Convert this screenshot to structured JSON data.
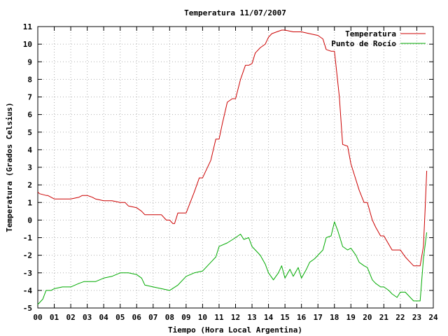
{
  "chart_data": {
    "type": "line",
    "title": "Temperatura 11/07/2007",
    "xlabel": "Tiempo (Hora Local Argentina)",
    "ylabel": "Temperatura (Grados Celsius)",
    "xlim": [
      0,
      24
    ],
    "ylim": [
      -5,
      11
    ],
    "xticks": [
      0,
      1,
      2,
      3,
      4,
      5,
      6,
      7,
      8,
      9,
      10,
      11,
      12,
      13,
      14,
      15,
      16,
      17,
      18,
      19,
      20,
      21,
      22,
      23,
      24
    ],
    "xtick_labels": [
      "00",
      "01",
      "02",
      "03",
      "04",
      "05",
      "06",
      "07",
      "08",
      "09",
      "10",
      "11",
      "12",
      "13",
      "14",
      "15",
      "16",
      "17",
      "18",
      "19",
      "20",
      "21",
      "22",
      "23",
      "24"
    ],
    "yticks": [
      -5,
      -4,
      -3,
      -2,
      -1,
      0,
      1,
      2,
      3,
      4,
      5,
      6,
      7,
      8,
      9,
      10,
      11
    ],
    "grid": true,
    "legend_position": "top-right",
    "series": [
      {
        "name": "Temperatura",
        "color": "#cc0000",
        "x": [
          0.0,
          0.1,
          0.5,
          0.6,
          1.0,
          1.5,
          2.0,
          2.5,
          2.7,
          3.0,
          3.3,
          3.5,
          4.0,
          4.5,
          5.0,
          5.3,
          5.5,
          6.0,
          6.3,
          6.5,
          7.0,
          7.5,
          7.8,
          8.0,
          8.2,
          8.3,
          8.5,
          8.8,
          9.0,
          9.5,
          9.8,
          10.0,
          10.5,
          10.8,
          11.0,
          11.2,
          11.5,
          11.8,
          12.0,
          12.3,
          12.6,
          12.8,
          13.0,
          13.2,
          13.5,
          13.8,
          14.0,
          14.2,
          14.5,
          14.8,
          15.0,
          15.5,
          16.0,
          16.5,
          17.0,
          17.3,
          17.5,
          17.8,
          18.0,
          18.3,
          18.5,
          18.8,
          19.0,
          19.5,
          19.8,
          20.0,
          20.3,
          20.5,
          20.8,
          21.0,
          21.5,
          21.8,
          22.0,
          22.3,
          22.5,
          22.8,
          23.0,
          23.2,
          23.4,
          23.5,
          23.6
        ],
        "values": [
          1.6,
          1.5,
          1.4,
          1.4,
          1.2,
          1.2,
          1.2,
          1.3,
          1.4,
          1.4,
          1.3,
          1.2,
          1.1,
          1.1,
          1.0,
          1.0,
          0.8,
          0.7,
          0.5,
          0.3,
          0.3,
          0.3,
          0.0,
          0.0,
          -0.2,
          -0.2,
          0.4,
          0.4,
          0.4,
          1.6,
          2.4,
          2.4,
          3.4,
          4.6,
          4.6,
          5.5,
          6.7,
          6.9,
          6.9,
          8.0,
          8.8,
          8.8,
          8.9,
          9.5,
          9.8,
          10.0,
          10.4,
          10.6,
          10.7,
          10.8,
          10.8,
          10.7,
          10.7,
          10.6,
          10.5,
          10.3,
          9.7,
          9.6,
          9.6,
          7.0,
          4.3,
          4.2,
          3.2,
          1.7,
          1.0,
          1.0,
          0.0,
          -0.4,
          -0.9,
          -0.9,
          -1.7,
          -1.7,
          -1.7,
          -2.1,
          -2.3,
          -2.6,
          -2.6,
          -2.6,
          -1.5,
          0.5,
          2.8
        ]
      },
      {
        "name": "Punto de Rocío",
        "color": "#00aa00",
        "x": [
          0.0,
          0.3,
          0.5,
          0.8,
          1.0,
          1.5,
          2.0,
          2.5,
          2.8,
          3.0,
          3.5,
          4.0,
          4.5,
          5.0,
          5.5,
          6.0,
          6.3,
          6.5,
          7.0,
          7.5,
          8.0,
          8.5,
          9.0,
          9.5,
          10.0,
          10.3,
          10.5,
          10.8,
          11.0,
          11.5,
          12.0,
          12.3,
          12.5,
          12.8,
          13.0,
          13.3,
          13.5,
          13.8,
          14.0,
          14.3,
          14.6,
          14.8,
          15.0,
          15.3,
          15.5,
          15.8,
          16.0,
          16.3,
          16.5,
          16.8,
          17.0,
          17.3,
          17.5,
          17.8,
          18.0,
          18.2,
          18.5,
          18.8,
          19.0,
          19.3,
          19.5,
          19.8,
          20.0,
          20.3,
          20.5,
          20.8,
          21.0,
          21.3,
          21.5,
          21.8,
          22.0,
          22.3,
          22.5,
          22.8,
          23.0,
          23.2,
          23.4,
          23.6
        ],
        "values": [
          -4.8,
          -4.5,
          -4.0,
          -4.0,
          -3.9,
          -3.8,
          -3.8,
          -3.6,
          -3.5,
          -3.5,
          -3.5,
          -3.3,
          -3.2,
          -3.0,
          -3.0,
          -3.1,
          -3.3,
          -3.7,
          -3.8,
          -3.9,
          -4.0,
          -3.7,
          -3.2,
          -3.0,
          -2.9,
          -2.6,
          -2.4,
          -2.1,
          -1.5,
          -1.3,
          -1.0,
          -0.8,
          -1.1,
          -1.0,
          -1.5,
          -1.8,
          -2.0,
          -2.5,
          -3.0,
          -3.4,
          -3.0,
          -2.6,
          -3.3,
          -2.8,
          -3.2,
          -2.7,
          -3.3,
          -2.8,
          -2.4,
          -2.2,
          -2.0,
          -1.7,
          -1.0,
          -0.9,
          -0.1,
          -0.6,
          -1.5,
          -1.7,
          -1.6,
          -2.0,
          -2.4,
          -2.6,
          -2.7,
          -3.4,
          -3.6,
          -3.8,
          -3.8,
          -4.0,
          -4.2,
          -4.4,
          -4.1,
          -4.1,
          -4.3,
          -4.6,
          -4.6,
          -4.6,
          -2.2,
          -0.7
        ]
      }
    ]
  }
}
